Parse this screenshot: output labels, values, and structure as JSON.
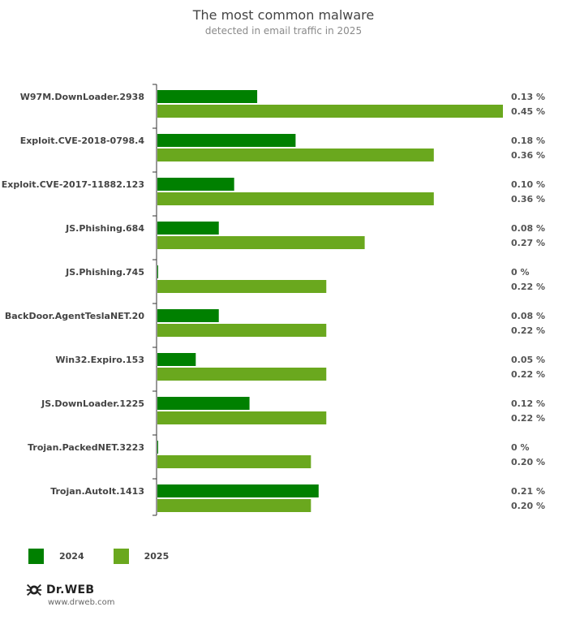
{
  "header": {
    "title": "The most common malware",
    "subtitle": "detected in email traffic in 2025"
  },
  "colors": {
    "series_2024": "#008000",
    "series_2025": "#6aa81e",
    "axis": "#333333"
  },
  "legend": {
    "items": [
      "2024",
      "2025"
    ]
  },
  "brand": {
    "name": "Dr.WEB",
    "url": "www.drweb.com"
  },
  "chart_data": {
    "type": "bar",
    "orientation": "horizontal",
    "title": "The most common malware",
    "subtitle": "detected in email traffic in 2025",
    "categories": [
      "W97M.DownLoader.2938",
      "Exploit.CVE-2018-0798.4",
      "Exploit.CVE-2017-11882.123",
      "JS.Phishing.684",
      "JS.Phishing.745",
      "BackDoor.AgentTeslaNET.20",
      "Win32.Expiro.153",
      "JS.DownLoader.1225",
      "Trojan.PackedNET.3223",
      "Trojan.AutoIt.1413"
    ],
    "series": [
      {
        "name": "2024",
        "values": [
          0.13,
          0.18,
          0.1,
          0.08,
          0,
          0.08,
          0.05,
          0.12,
          0,
          0.21
        ],
        "labels": [
          "0.13 %",
          "0.18 %",
          "0.10 %",
          "0.08 %",
          "0 %",
          "0.08 %",
          "0.05 %",
          "0.12 %",
          "0 %",
          "0.21 %"
        ]
      },
      {
        "name": "2025",
        "values": [
          0.45,
          0.36,
          0.36,
          0.27,
          0.22,
          0.22,
          0.22,
          0.22,
          0.2,
          0.2
        ],
        "labels": [
          "0.45 %",
          "0.36 %",
          "0.36 %",
          "0.27 %",
          "0.22 %",
          "0.22 %",
          "0.22 %",
          "0.22 %",
          "0.20 %",
          "0.20 %"
        ]
      }
    ],
    "xlim": [
      0,
      0.45
    ],
    "xlabel": "",
    "ylabel": "",
    "grid": false,
    "legend_position": "bottom-left"
  }
}
